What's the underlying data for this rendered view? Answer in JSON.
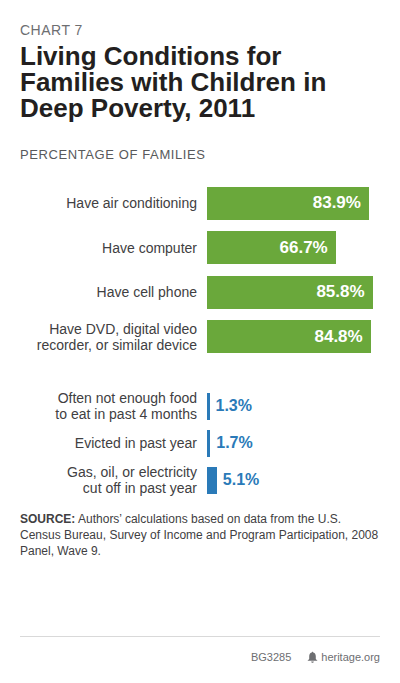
{
  "header": {
    "label": "CHART 7",
    "title": "Living Conditions for Families with Children in Deep Poverty, 2011"
  },
  "chart_data": [
    {
      "type": "bar",
      "orientation": "horizontal",
      "subtitle": "PERCENTAGE OF FAMILIES",
      "categories": [
        "Have air conditioning",
        "Have computer",
        "Have cell phone",
        "Have DVD, digital video recorder, or similar device"
      ],
      "values": [
        83.9,
        66.7,
        85.8,
        84.8
      ],
      "value_labels": [
        "83.9%",
        "66.7%",
        "85.8%",
        "84.8%"
      ],
      "color": "#6aa83b",
      "xlim": [
        0,
        100
      ],
      "data_labels": true,
      "tick_labels": "y"
    },
    {
      "type": "bar",
      "orientation": "horizontal",
      "categories": [
        "Often not enough food to eat in past 4 months",
        "Evicted in past year",
        "Gas, oil, or electricity cut off in past year"
      ],
      "values": [
        1.3,
        1.7,
        5.1
      ],
      "value_labels": [
        "1.3%",
        "1.7%",
        "5.1%"
      ],
      "color": "#2a7ab8",
      "xlim": [
        0,
        100
      ],
      "data_labels": true,
      "tick_labels": "y"
    }
  ],
  "footer": {
    "source_label": "SOURCE:",
    "source": "Authors’ calculations based on data from the U.S. Census Bureau, Survey of Income and Program Participation, 2008 Panel, Wave 9.",
    "code": "BG3285",
    "site": "heritage.org"
  }
}
